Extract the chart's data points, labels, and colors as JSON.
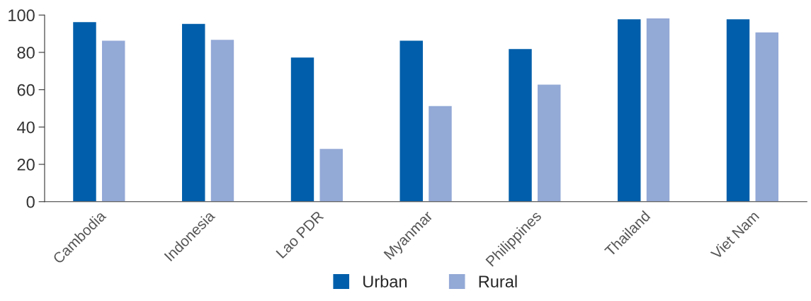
{
  "chart_data": {
    "type": "bar",
    "categories": [
      "Cambodia",
      "Indonesia",
      "Lao PDR",
      "Myanmar",
      "Philippines",
      "Thailand",
      "Viet Nam"
    ],
    "series": [
      {
        "name": "Urban",
        "color": "#005eaa",
        "values": [
          96.5,
          95.5,
          77.5,
          86.5,
          82,
          98,
          98
        ]
      },
      {
        "name": "Rural",
        "color": "#93a9d6",
        "values": [
          86.5,
          87,
          28.5,
          51.5,
          63,
          98.5,
          91
        ]
      }
    ],
    "ylim": [
      0,
      100
    ],
    "yticks": [
      0,
      20,
      40,
      60,
      80,
      100
    ],
    "grid": false,
    "legend": "bottom"
  }
}
